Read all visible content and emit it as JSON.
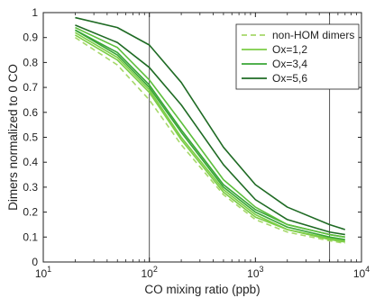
{
  "chart_data": {
    "type": "line",
    "xlabel": "CO mixing ratio (ppb)",
    "ylabel": "Dimers normalized to 0 CO",
    "xscale": "log",
    "xlim": [
      10,
      10000
    ],
    "ylim": [
      0,
      1
    ],
    "yticks": [
      0,
      0.1,
      0.2,
      0.3,
      0.4,
      0.5,
      0.6,
      0.7,
      0.8,
      0.9,
      1
    ],
    "ytick_labels": [
      "0",
      "0.1",
      "0.2",
      "0.3",
      "0.4",
      "0.5",
      "0.6",
      "0.7",
      "0.8",
      "0.9",
      "1"
    ],
    "xticks": [
      {
        "value": 10,
        "base": "10",
        "exp": "1"
      },
      {
        "value": 100,
        "base": "10",
        "exp": "2"
      },
      {
        "value": 1000,
        "base": "10",
        "exp": "3"
      },
      {
        "value": 10000,
        "base": "10",
        "exp": "4"
      }
    ],
    "vlines": [
      100,
      5000
    ],
    "grid": false,
    "legend_position": "top-right",
    "x": [
      20,
      50,
      100,
      200,
      500,
      1000,
      2000,
      5000,
      7000
    ],
    "series": [
      {
        "name": "non-HOM dimers",
        "color": "#a6d86a",
        "dashed": true,
        "legend": true,
        "values": [
          0.9,
          0.79,
          0.65,
          0.47,
          0.27,
          0.17,
          0.12,
          0.085,
          0.075
        ]
      },
      {
        "name": "Ox=1,2",
        "color": "#7ccd46",
        "dashed": false,
        "legend": true,
        "values": [
          0.91,
          0.81,
          0.68,
          0.49,
          0.28,
          0.18,
          0.13,
          0.09,
          0.08
        ]
      },
      {
        "color": "#7ccd46",
        "dashed": false,
        "legend": false,
        "values": [
          0.92,
          0.82,
          0.69,
          0.5,
          0.29,
          0.19,
          0.13,
          0.095,
          0.085
        ]
      },
      {
        "name": "Ox=3,4",
        "color": "#3aa636",
        "dashed": false,
        "legend": true,
        "values": [
          0.93,
          0.83,
          0.7,
          0.52,
          0.3,
          0.2,
          0.14,
          0.1,
          0.09
        ]
      },
      {
        "color": "#3aa636",
        "dashed": false,
        "legend": false,
        "values": [
          0.93,
          0.84,
          0.71,
          0.53,
          0.31,
          0.21,
          0.15,
          0.11,
          0.1
        ]
      },
      {
        "color": "#5dbf3c",
        "dashed": false,
        "legend": false,
        "values": [
          0.94,
          0.86,
          0.73,
          0.56,
          0.33,
          0.22,
          0.15,
          0.11,
          0.1
        ]
      },
      {
        "name": "Ox=5,6",
        "color": "#1f6b24",
        "dashed": false,
        "legend": true,
        "values": [
          0.95,
          0.88,
          0.78,
          0.63,
          0.39,
          0.25,
          0.17,
          0.12,
          0.11
        ]
      },
      {
        "color": "#1f6b24",
        "dashed": false,
        "legend": false,
        "values": [
          0.98,
          0.94,
          0.87,
          0.72,
          0.46,
          0.31,
          0.22,
          0.15,
          0.13
        ]
      }
    ]
  }
}
